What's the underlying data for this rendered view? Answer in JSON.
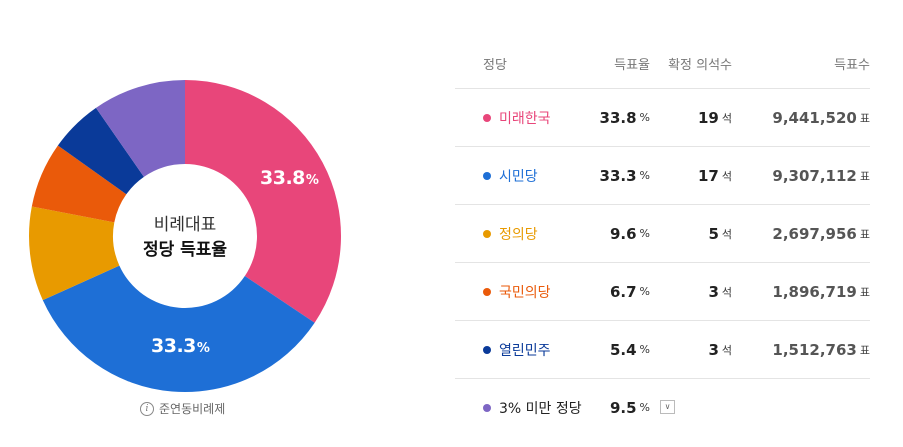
{
  "chart_data": {
    "type": "pie",
    "center_title": "비례대표",
    "center_subtitle": "정당 득표율",
    "slices": [
      {
        "label": "미래한국",
        "value": 33.8,
        "color": "#e8467a"
      },
      {
        "label": "시민당",
        "value": 33.3,
        "color": "#1e6fd6"
      },
      {
        "label": "정의당",
        "value": 9.6,
        "color": "#e89a00"
      },
      {
        "label": "국민의당",
        "value": 6.7,
        "color": "#ea5a0a"
      },
      {
        "label": "열린민주",
        "value": 5.4,
        "color": "#0a3a99"
      },
      {
        "label": "3% 미만 정당",
        "value": 9.5,
        "color": "#7d66c4"
      }
    ],
    "slice_labels": [
      {
        "num": "33.8",
        "pct": "%"
      },
      {
        "num": "33.3",
        "pct": "%"
      }
    ]
  },
  "note": {
    "text": "준연동비례제",
    "icon": "info-icon"
  },
  "table": {
    "headers": {
      "party": "정당",
      "rate": "득표율",
      "seats": "확정 의석수",
      "votes": "득표수"
    },
    "rows": [
      {
        "party": "미래한국",
        "color": "#e8467a",
        "rate": "33.8",
        "rate_unit": "%",
        "seats": "19",
        "seats_unit": "석",
        "votes": "9,441,520",
        "votes_unit": "표"
      },
      {
        "party": "시민당",
        "color": "#1e6fd6",
        "rate": "33.3",
        "rate_unit": "%",
        "seats": "17",
        "seats_unit": "석",
        "votes": "9,307,112",
        "votes_unit": "표"
      },
      {
        "party": "정의당",
        "color": "#e89a00",
        "rate": "9.6",
        "rate_unit": "%",
        "seats": "5",
        "seats_unit": "석",
        "votes": "2,697,956",
        "votes_unit": "표"
      },
      {
        "party": "국민의당",
        "color": "#ea5a0a",
        "rate": "6.7",
        "rate_unit": "%",
        "seats": "3",
        "seats_unit": "석",
        "votes": "1,896,719",
        "votes_unit": "표"
      },
      {
        "party": "열린민주",
        "color": "#0a3a99",
        "rate": "5.4",
        "rate_unit": "%",
        "seats": "3",
        "seats_unit": "석",
        "votes": "1,512,763",
        "votes_unit": "표"
      }
    ],
    "other": {
      "party": "3% 미만 정당",
      "color": "#7d66c4",
      "rate": "9.5",
      "rate_unit": "%",
      "toggle_icon": "chevron-down-icon",
      "toggle_glyph": "∨"
    }
  }
}
